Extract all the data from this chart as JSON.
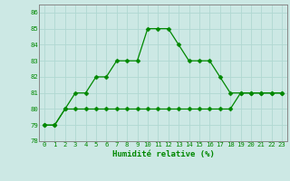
{
  "xlabel": "Humidité relative (%)",
  "background_color": "#cce8e4",
  "grid_color": "#b0d8d2",
  "line_color": "#008800",
  "x_data": [
    0,
    1,
    2,
    3,
    4,
    5,
    6,
    7,
    8,
    9,
    10,
    11,
    12,
    13,
    14,
    15,
    16,
    17,
    18,
    19,
    20,
    21,
    22,
    23
  ],
  "y1_data": [
    79,
    79,
    80,
    81,
    81,
    82,
    82,
    83,
    83,
    83,
    85,
    85,
    85,
    84,
    83,
    83,
    83,
    82,
    81,
    81,
    81,
    81,
    81,
    81
  ],
  "y2_data": [
    79,
    79,
    80,
    80,
    80,
    80,
    80,
    80,
    80,
    80,
    80,
    80,
    80,
    80,
    80,
    80,
    80,
    80,
    80,
    81,
    81,
    81,
    81,
    81
  ],
  "ylim": [
    78,
    86.5
  ],
  "xlim": [
    -0.5,
    23.5
  ],
  "yticks": [
    78,
    79,
    80,
    81,
    82,
    83,
    84,
    85,
    86
  ],
  "xticks": [
    0,
    1,
    2,
    3,
    4,
    5,
    6,
    7,
    8,
    9,
    10,
    11,
    12,
    13,
    14,
    15,
    16,
    17,
    18,
    19,
    20,
    21,
    22,
    23
  ],
  "marker_size": 2.5,
  "line_width": 0.9,
  "tick_fontsize": 5.2,
  "xlabel_fontsize": 6.5
}
